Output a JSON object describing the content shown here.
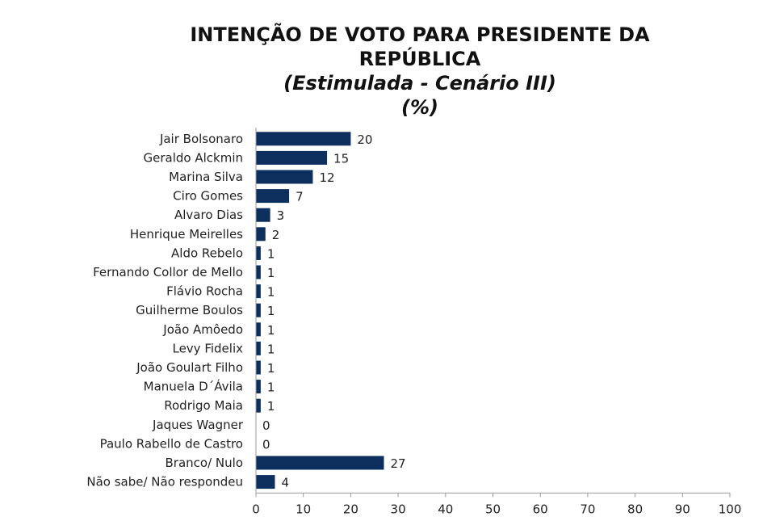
{
  "chart_data": {
    "type": "bar",
    "orientation": "horizontal",
    "title_lines": [
      "INTENÇÃO DE VOTO PARA PRESIDENTE DA",
      "REPÚBLICA"
    ],
    "subtitle_lines": [
      "(Estimulada - Cenário III)",
      "(%)"
    ],
    "categories": [
      "Jair Bolsonaro",
      "Geraldo Alckmin",
      "Marina Silva",
      "Ciro Gomes",
      "Alvaro Dias",
      "Henrique Meirelles",
      "Aldo Rebelo",
      "Fernando Collor de Mello",
      "Flávio Rocha",
      "Guilherme Boulos",
      "João Amôedo",
      "Levy Fidelix",
      "João Goulart Filho",
      "Manuela D´Ávila",
      "Rodrigo Maia",
      "Jaques Wagner",
      "Paulo Rabello de Castro",
      "Branco/ Nulo",
      "Não sabe/ Não respondeu"
    ],
    "values": [
      20,
      15,
      12,
      7,
      3,
      2,
      1,
      1,
      1,
      1,
      1,
      1,
      1,
      1,
      1,
      0,
      0,
      27,
      4
    ],
    "xlim": [
      0,
      100
    ],
    "xticks": [
      0,
      10,
      20,
      30,
      40,
      50,
      60,
      70,
      80,
      90,
      100
    ],
    "bar_color": "#0d2f5e",
    "grid": false,
    "legend": "none"
  }
}
